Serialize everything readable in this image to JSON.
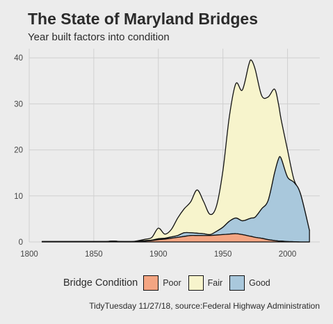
{
  "title": "The State of Maryland Bridges",
  "subtitle": "Year built factors into condition",
  "caption": "TidyTuesday 11/27/18, source:Federal Highway Administration",
  "legend": {
    "title": "Bridge Condition",
    "items": [
      {
        "label": "Poor",
        "color": "#f4a582"
      },
      {
        "label": "Fair",
        "color": "#f7f4cc"
      },
      {
        "label": "Good",
        "color": "#a9c8dc"
      }
    ]
  },
  "chart_data": {
    "type": "area",
    "stacked": true,
    "xlim": [
      1800,
      2025
    ],
    "ylim": [
      0,
      42
    ],
    "x_ticks": [
      "1800",
      "1850",
      "1900",
      "1950",
      "2000"
    ],
    "y_ticks": [
      "0",
      "10",
      "20",
      "30",
      "40"
    ],
    "grid": true,
    "legend_position": "bottom",
    "x": [
      1810,
      1820,
      1830,
      1840,
      1850,
      1860,
      1865,
      1870,
      1880,
      1890,
      1895,
      1900,
      1905,
      1910,
      1915,
      1920,
      1925,
      1930,
      1935,
      1940,
      1945,
      1950,
      1955,
      1960,
      1965,
      1970,
      1972,
      1975,
      1980,
      1985,
      1990,
      1993,
      1995,
      2000,
      2005,
      2010,
      2017
    ],
    "series": [
      {
        "name": "Poor",
        "color": "#f4a582",
        "values": [
          0.1,
          0.1,
          0.1,
          0.1,
          0.1,
          0.1,
          0.2,
          0.1,
          0.1,
          0.2,
          0.3,
          0.5,
          0.6,
          0.8,
          1.0,
          1.2,
          1.4,
          1.4,
          1.4,
          1.4,
          1.5,
          1.6,
          1.7,
          1.8,
          1.6,
          1.3,
          1.2,
          1.0,
          0.8,
          0.5,
          0.3,
          0.2,
          0.2,
          0.1,
          0.05,
          0.0,
          0.0
        ]
      },
      {
        "name": "Good",
        "color": "#a9c8dc",
        "values": [
          0,
          0,
          0,
          0,
          0,
          0,
          0,
          0,
          0,
          0.1,
          0.1,
          0.2,
          0.2,
          0.3,
          0.4,
          0.8,
          0.6,
          0.5,
          0.4,
          0.2,
          0.8,
          1.6,
          2.8,
          3.4,
          3.0,
          3.7,
          4.0,
          4.4,
          6.4,
          8.5,
          14.7,
          17.8,
          18.0,
          14.0,
          12.9,
          10.5,
          2.5
        ]
      },
      {
        "name": "Fair",
        "color": "#f7f4cc",
        "values": [
          0,
          0,
          0,
          0,
          0,
          0,
          0,
          0,
          0,
          0.3,
          0.6,
          2.3,
          0.9,
          1.6,
          3.8,
          5.2,
          6.7,
          9.4,
          7.0,
          4.4,
          5.5,
          12.3,
          22.8,
          29.2,
          28.4,
          33.5,
          34.3,
          32.1,
          24.6,
          22.5,
          18.2,
          12.0,
          8.5,
          5.9,
          0.6,
          0.0,
          0.0
        ]
      }
    ]
  }
}
